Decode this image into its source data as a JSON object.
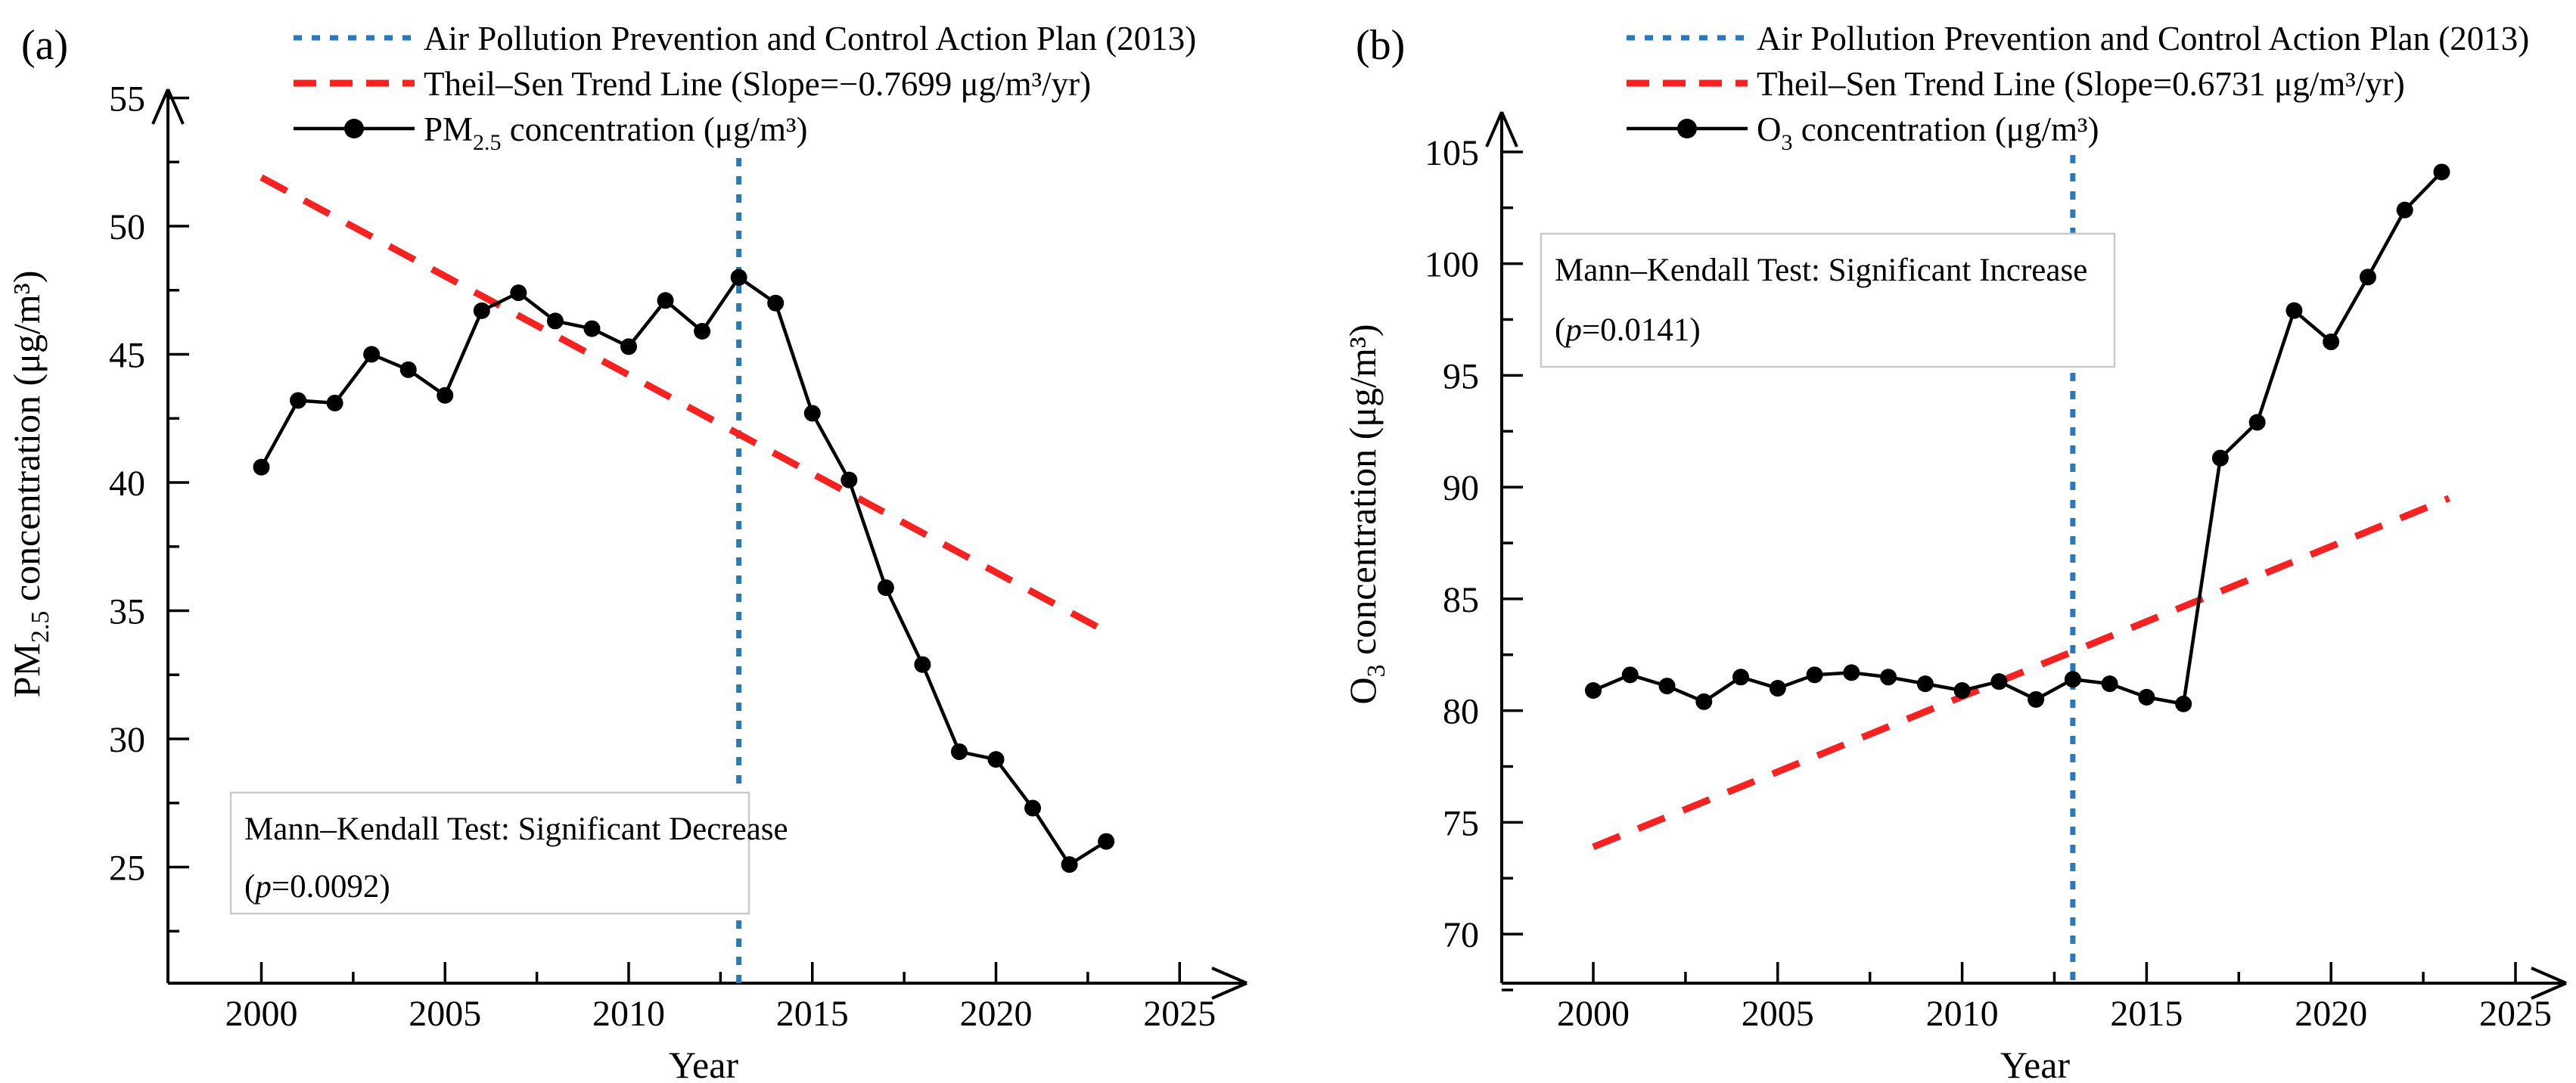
{
  "figure": {
    "colors": {
      "policy_line": "#2878be",
      "trend_line": "#f62121",
      "series": "#000000",
      "annotation_border": "#c9c9c9",
      "annotation_bg": "#ffffff"
    },
    "panels": [
      {
        "label": "(a)",
        "legend": {
          "policy": "Air Pollution Prevention and Control Action Plan (2013)",
          "trend": "Theil–Sen Trend Line (Slope=−0.7699 μg/m³/yr)",
          "series_parts": {
            "prefix": "PM",
            "sub": "2.5",
            "rest": " concentration (μg/m³)"
          }
        },
        "y_title_parts": {
          "prefix": "PM",
          "sub": "2.5",
          "rest": " concentration (μg/m³)"
        },
        "x_title": "Year",
        "annotation": {
          "line1": "Mann–Kendall Test: Significant Decrease",
          "p_open": "(",
          "p_var": "p",
          "p_rest": "=0.0092)"
        }
      },
      {
        "label": "(b)",
        "legend": {
          "policy": "Air Pollution Prevention and Control Action Plan (2013)",
          "trend": "Theil–Sen Trend Line (Slope=0.6731 μg/m³/yr)",
          "series_parts": {
            "prefix": "O",
            "sub": "3",
            "rest": " concentration (μg/m³)"
          }
        },
        "y_title_parts": {
          "prefix": "O",
          "sub": "3",
          "rest": " concentration (μg/m³)"
        },
        "x_title": "Year",
        "annotation": {
          "line1": "Mann–Kendall Test: Significant Increase",
          "p_open": "(",
          "p_var": "p",
          "p_rest": "=0.0141)"
        }
      }
    ]
  },
  "chart_data": [
    {
      "type": "line",
      "panel": "a",
      "title": "",
      "xlabel": "Year",
      "ylabel": "PM2.5 concentration (μg/m³)",
      "x_ticks": [
        2000,
        2005,
        2010,
        2015,
        2020,
        2025
      ],
      "y_ticks": [
        25,
        30,
        35,
        40,
        45,
        50,
        55
      ],
      "xlim": [
        2000,
        2025
      ],
      "ylim": [
        25,
        55
      ],
      "grid": false,
      "legend_position": "top-left",
      "x": [
        2000,
        2001,
        2002,
        2003,
        2004,
        2005,
        2006,
        2007,
        2008,
        2009,
        2010,
        2011,
        2012,
        2013,
        2014,
        2015,
        2016,
        2017,
        2018,
        2019,
        2020,
        2021,
        2022,
        2023
      ],
      "series": [
        {
          "name": "PM2.5 concentration (μg/m³)",
          "values": [
            40.6,
            43.2,
            43.1,
            45.0,
            44.4,
            43.4,
            46.7,
            47.4,
            46.3,
            46.0,
            45.3,
            47.1,
            45.9,
            48.0,
            47.0,
            42.7,
            40.1,
            35.9,
            32.9,
            29.5,
            29.2,
            27.3,
            25.1,
            26.0
          ]
        }
      ],
      "trend_line": {
        "name": "Theil–Sen Trend Line",
        "slope": -0.7699,
        "x_start": 2000,
        "y_start": 51.9,
        "x_end": 2022.85,
        "y_end": 34.3
      },
      "reference_line": {
        "name": "Air Pollution Prevention and Control Action Plan",
        "x": 2013
      },
      "annotation": "Mann–Kendall Test: Significant Decrease (p=0.0092)"
    },
    {
      "type": "line",
      "panel": "b",
      "title": "",
      "xlabel": "Year",
      "ylabel": "O3 concentration (μg/m³)",
      "x_ticks": [
        2000,
        2005,
        2010,
        2015,
        2020,
        2025
      ],
      "y_ticks": [
        70,
        75,
        80,
        85,
        90,
        95,
        100,
        105
      ],
      "xlim": [
        2000,
        2025
      ],
      "ylim": [
        70,
        105
      ],
      "grid": false,
      "legend_position": "top-left",
      "x": [
        2000,
        2001,
        2002,
        2003,
        2004,
        2005,
        2006,
        2007,
        2008,
        2009,
        2010,
        2011,
        2012,
        2013,
        2014,
        2015,
        2016,
        2017,
        2018,
        2019,
        2020,
        2021,
        2022,
        2023
      ],
      "series": [
        {
          "name": "O3 concentration (μg/m³)",
          "values": [
            80.9,
            81.6,
            81.1,
            80.4,
            81.5,
            81.0,
            81.6,
            81.7,
            81.5,
            81.2,
            80.9,
            81.3,
            80.5,
            81.4,
            81.2,
            80.6,
            80.3,
            91.3,
            92.9,
            97.9,
            96.5,
            99.4,
            102.4,
            104.1
          ]
        }
      ],
      "trend_line": {
        "name": "Theil–Sen Trend Line",
        "slope": 0.6731,
        "x_start": 2000,
        "y_start": 73.9,
        "x_end": 2023.2,
        "y_end": 89.5
      },
      "reference_line": {
        "name": "Air Pollution Prevention and Control Action Plan",
        "x": 2013
      },
      "annotation": "Mann–Kendall Test: Significant Increase (p=0.0141)"
    }
  ]
}
